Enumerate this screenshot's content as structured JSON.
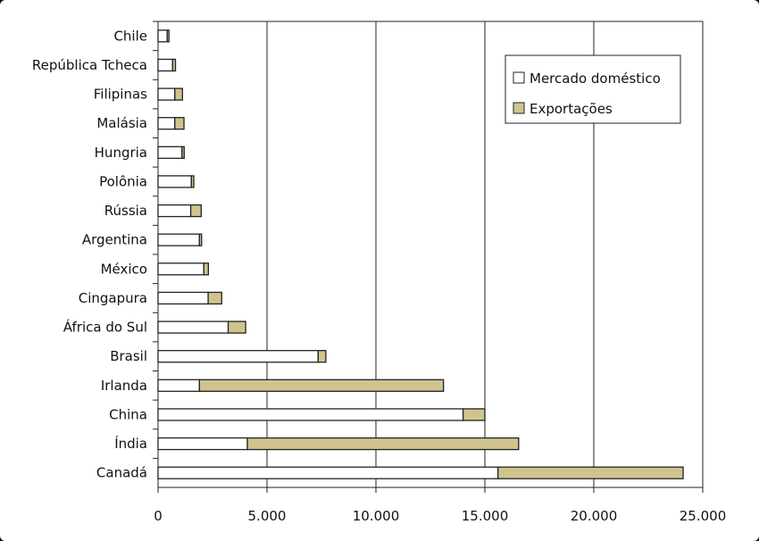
{
  "chart_data": {
    "type": "bar",
    "orientation": "horizontal",
    "stacked": true,
    "categories": [
      "Chile",
      "República Tcheca",
      "Filipinas",
      "Malásia",
      "Hungria",
      "Polônia",
      "Rússia",
      "Argentina",
      "México",
      "Cingapura",
      "África do Sul",
      "Brasil",
      "Irlanda",
      "China",
      "Índia",
      "Canadá"
    ],
    "series": [
      {
        "name": "Mercado doméstico",
        "color": "#ffffff",
        "values": [
          420,
          670,
          770,
          770,
          1100,
          1530,
          1500,
          1900,
          2100,
          2300,
          3220,
          7350,
          1900,
          14000,
          4100,
          15600
        ]
      },
      {
        "name": "Exportações",
        "color": "#cfc48e",
        "values": [
          80,
          130,
          350,
          420,
          100,
          110,
          480,
          100,
          210,
          620,
          800,
          350,
          11200,
          1000,
          12450,
          8500
        ]
      }
    ],
    "xlim": [
      0,
      25000
    ],
    "xticks": [
      "0",
      "5.000",
      "10.000",
      "15.000",
      "20.000",
      "25.000"
    ],
    "grid": true,
    "legend": "top-right"
  }
}
